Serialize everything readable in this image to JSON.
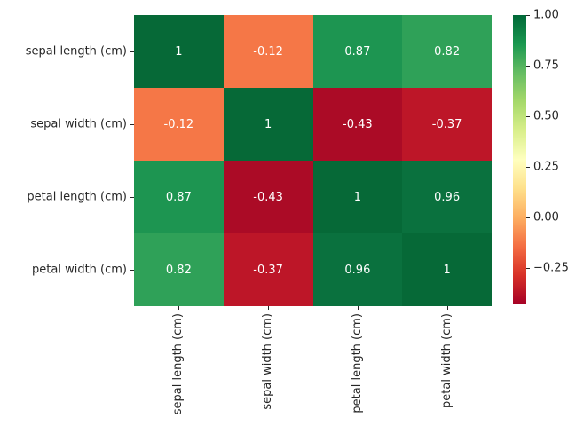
{
  "chart_data": {
    "type": "heatmap",
    "title": "",
    "xlabel": "",
    "ylabel": "",
    "categories": [
      "sepal length (cm)",
      "sepal width (cm)",
      "petal length (cm)",
      "petal width (cm)"
    ],
    "matrix": [
      [
        1,
        -0.12,
        0.87,
        0.82
      ],
      [
        -0.12,
        1,
        -0.43,
        -0.37
      ],
      [
        0.87,
        -0.43,
        1,
        0.96
      ],
      [
        0.82,
        -0.37,
        0.96,
        1
      ]
    ],
    "cell_labels": [
      [
        "1",
        "-0.12",
        "0.87",
        "0.82"
      ],
      [
        "-0.12",
        "1",
        "-0.43",
        "-0.37"
      ],
      [
        "0.87",
        "-0.43",
        "1",
        "0.96"
      ],
      [
        "0.82",
        "-0.37",
        "0.96",
        "1"
      ]
    ],
    "cell_colors": [
      [
        "#066937",
        "#f57747",
        "#1d9551",
        "#2fa158"
      ],
      [
        "#f57747",
        "#066937",
        "#ab0b26",
        "#bd1628"
      ],
      [
        "#1d9551",
        "#ab0b26",
        "#066937",
        "#0a713e"
      ],
      [
        "#2fa158",
        "#bd1628",
        "#0a713e",
        "#066937"
      ]
    ],
    "annotation_text_color": "#ffffff",
    "axis_label_color": "#262626",
    "background_color": "#ffffff",
    "colormap": "RdYlGn",
    "vmin": -0.43,
    "vmax": 1.0,
    "grid": false,
    "colorbar": {
      "position": "right",
      "tick_labels": [
        "1.00",
        "0.75",
        "0.50",
        "0.25",
        "0.00",
        "−0.25"
      ],
      "tick_values": [
        1.0,
        0.75,
        0.5,
        0.25,
        0.0,
        -0.25
      ],
      "gradient_stops": [
        "#a50026",
        "#d73027",
        "#f46d43",
        "#fdae61",
        "#fee08b",
        "#ffffbf",
        "#d9ef8b",
        "#a6d96a",
        "#66bd63",
        "#1a9850",
        "#006837"
      ]
    }
  }
}
